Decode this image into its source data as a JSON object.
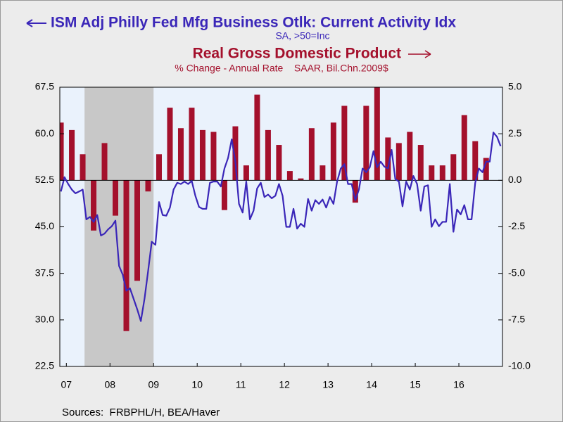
{
  "chart_data": {
    "type": "combo",
    "sources": "Sources:  FRBPHL/H, BEA/Haver",
    "xlim": [
      2007.35,
      2017.5
    ],
    "xticks": [
      {
        "value": 2007.5,
        "label": "07"
      },
      {
        "value": 2008.5,
        "label": "08"
      },
      {
        "value": 2009.5,
        "label": "09"
      },
      {
        "value": 2010.5,
        "label": "10"
      },
      {
        "value": 2011.5,
        "label": "11"
      },
      {
        "value": 2012.5,
        "label": "12"
      },
      {
        "value": 2013.5,
        "label": "13"
      },
      {
        "value": 2014.5,
        "label": "14"
      },
      {
        "value": 2015.5,
        "label": "15"
      },
      {
        "value": 2016.5,
        "label": "16"
      }
    ],
    "ylim": [
      22.5,
      67.5
    ],
    "yticks": [
      {
        "value": 22.5,
        "label": "22.5"
      },
      {
        "value": 30,
        "label": "30.0"
      },
      37.5,
      {
        "value": 45,
        "label": "45.0"
      },
      52.5,
      {
        "value": 60,
        "label": "60.0"
      },
      67.5
    ],
    "y2lim": [
      -10,
      5
    ],
    "y2ticks": [
      {
        "value": -10,
        "label": "-10.0"
      },
      -7.5,
      {
        "value": -5,
        "label": "-5.0"
      },
      -2.5,
      {
        "value": 0,
        "label": "0.0"
      },
      2.5,
      {
        "value": 5,
        "label": "5.0"
      }
    ],
    "shaded_ranges": [
      [
        2007.917,
        2009.5
      ]
    ],
    "shade_color": "#c8c8c8",
    "plot_background": "#eaf2fc",
    "series": [
      {
        "name": "ISM Adj Philly Fed Mfg Business Otlk: Current Activity Idx",
        "subtitle": "SA, >50=Inc",
        "type": "line",
        "axis": "y",
        "color": "#3a26b8",
        "x": [
          2007.375,
          2007.458,
          2007.542,
          2007.625,
          2007.708,
          2007.792,
          2007.875,
          2007.958,
          2008.042,
          2008.125,
          2008.208,
          2008.292,
          2008.375,
          2008.458,
          2008.542,
          2008.625,
          2008.708,
          2008.792,
          2008.875,
          2008.958,
          2009.042,
          2009.125,
          2009.208,
          2009.292,
          2009.375,
          2009.458,
          2009.542,
          2009.625,
          2009.708,
          2009.792,
          2009.875,
          2009.958,
          2010.042,
          2010.125,
          2010.208,
          2010.292,
          2010.375,
          2010.458,
          2010.542,
          2010.625,
          2010.708,
          2010.792,
          2010.875,
          2010.958,
          2011.042,
          2011.125,
          2011.208,
          2011.292,
          2011.375,
          2011.458,
          2011.542,
          2011.625,
          2011.708,
          2011.792,
          2011.875,
          2011.958,
          2012.042,
          2012.125,
          2012.208,
          2012.292,
          2012.375,
          2012.458,
          2012.542,
          2012.625,
          2012.708,
          2012.792,
          2012.875,
          2012.958,
          2013.042,
          2013.125,
          2013.208,
          2013.292,
          2013.375,
          2013.458,
          2013.542,
          2013.625,
          2013.708,
          2013.792,
          2013.875,
          2013.958,
          2014.042,
          2014.125,
          2014.208,
          2014.292,
          2014.375,
          2014.458,
          2014.542,
          2014.625,
          2014.708,
          2014.792,
          2014.875,
          2014.958,
          2015.042,
          2015.125,
          2015.208,
          2015.292,
          2015.375,
          2015.458,
          2015.542,
          2015.625,
          2015.708,
          2015.792,
          2015.875,
          2015.958,
          2016.042,
          2016.125,
          2016.208,
          2016.292,
          2016.375,
          2016.458,
          2016.542,
          2016.625,
          2016.708,
          2016.792,
          2016.875,
          2016.958,
          2017.042,
          2017.125,
          2017.208,
          2017.292,
          2017.375,
          2017.458
        ],
        "values": [
          50.7,
          53.0,
          51.9,
          51.0,
          50.4,
          50.7,
          51.0,
          46.2,
          46.6,
          45.8,
          46.9,
          43.6,
          43.9,
          44.6,
          45.1,
          46.0,
          38.7,
          37.3,
          34.7,
          35.1,
          33.4,
          31.7,
          29.8,
          33.4,
          37.9,
          42.6,
          42.1,
          49.0,
          46.9,
          46.8,
          48.1,
          51.0,
          52.1,
          51.9,
          52.3,
          51.9,
          52.4,
          50.0,
          48.2,
          47.9,
          47.9,
          52.1,
          52.3,
          52.3,
          51.5,
          54.4,
          56.1,
          59.1,
          55.5,
          48.7,
          47.3,
          52.3,
          46.2,
          47.6,
          51.2,
          52.1,
          49.8,
          50.2,
          49.6,
          50.0,
          51.9,
          50.0,
          45.0,
          45.0,
          47.9,
          44.7,
          45.5,
          45.0,
          49.5,
          47.6,
          49.3,
          48.7,
          49.4,
          48.1,
          49.8,
          48.7,
          52.3,
          54.4,
          55.1,
          51.9,
          51.9,
          49.3,
          51.0,
          54.4,
          53.8,
          54.6,
          57.2,
          54.6,
          55.5,
          54.7,
          54.4,
          57.4,
          52.7,
          52.3,
          48.3,
          52.3,
          51.0,
          53.2,
          51.9,
          47.6,
          51.5,
          51.7,
          45.0,
          46.2,
          45.1,
          45.8,
          45.8,
          51.9,
          44.2,
          47.8,
          47.0,
          48.5,
          46.2,
          46.2,
          52.1,
          54.4,
          53.8,
          55.5,
          55.5,
          60.2,
          59.5,
          58.0
        ]
      },
      {
        "name": "Real Gross Domestic Product",
        "subtitle": "% Change - Annual Rate    SAAR, Bil.Chn.2009$",
        "type": "bar",
        "axis": "y2",
        "color": "#a4102c",
        "x": [
          2007.375,
          2007.625,
          2007.875,
          2008.125,
          2008.375,
          2008.625,
          2008.875,
          2009.125,
          2009.375,
          2009.625,
          2009.875,
          2010.125,
          2010.375,
          2010.625,
          2010.875,
          2011.125,
          2011.375,
          2011.625,
          2011.875,
          2012.125,
          2012.375,
          2012.625,
          2012.875,
          2013.125,
          2013.375,
          2013.625,
          2013.875,
          2014.125,
          2014.375,
          2014.625,
          2014.875,
          2015.125,
          2015.375,
          2015.625,
          2015.875,
          2016.125,
          2016.375,
          2016.625,
          2016.875,
          2017.125
        ],
        "values": [
          3.1,
          2.7,
          1.4,
          -2.7,
          2.0,
          -1.9,
          -8.1,
          -5.4,
          -0.6,
          1.4,
          3.9,
          2.8,
          3.9,
          2.7,
          2.6,
          -1.6,
          2.9,
          0.8,
          4.6,
          2.7,
          1.9,
          0.5,
          0.1,
          2.8,
          0.8,
          3.1,
          4.0,
          -1.2,
          4.0,
          5.0,
          2.3,
          2.0,
          2.6,
          1.9,
          0.8,
          0.8,
          1.4,
          3.5,
          2.1,
          1.2
        ]
      }
    ]
  }
}
